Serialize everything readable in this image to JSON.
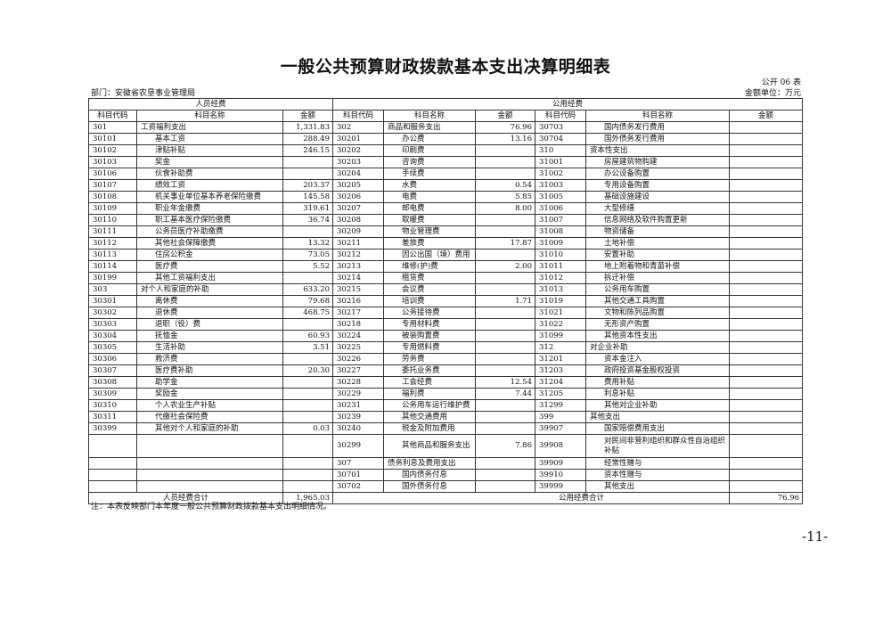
{
  "title": "一般公共预算财政拨款基本支出决算明细表",
  "table_no": "公开 06 表",
  "department": "部门：安徽省农垦事业管理局",
  "unit": "金额单位：万元",
  "sections": {
    "personnel": "人员经费",
    "public": "公用经费"
  },
  "headers": {
    "code": "科目代码",
    "name": "科目名称",
    "amount": "金额"
  },
  "personnel_rows": [
    [
      "301",
      "工资福利支出",
      "1,331.83"
    ],
    [
      "30101",
      "基本工资",
      "288.49"
    ],
    [
      "30102",
      "津贴补贴",
      "246.15"
    ],
    [
      "30103",
      "奖金",
      ""
    ],
    [
      "30106",
      "伙食补助费",
      ""
    ],
    [
      "30107",
      "绩效工资",
      "203.37"
    ],
    [
      "30108",
      "机关事业单位基本养老保险缴费",
      "145.58"
    ],
    [
      "30109",
      "职业年金缴费",
      "319.61"
    ],
    [
      "30110",
      "职工基本医疗保险缴费",
      "36.74"
    ],
    [
      "30111",
      "公务员医疗补助缴费",
      ""
    ],
    [
      "30112",
      "其他社会保障缴费",
      "13.32"
    ],
    [
      "30113",
      "住房公积金",
      "73.05"
    ],
    [
      "30114",
      "医疗费",
      "5.52"
    ],
    [
      "30199",
      "其他工资福利支出",
      ""
    ],
    [
      "303",
      "对个人和家庭的补助",
      "633.20"
    ],
    [
      "30301",
      "离休费",
      "79.68"
    ],
    [
      "30302",
      "退休费",
      "468.75"
    ],
    [
      "30303",
      "退职（役）费",
      ""
    ],
    [
      "30304",
      "抚恤金",
      "60.93"
    ],
    [
      "30305",
      "生活补助",
      "3.51"
    ],
    [
      "30306",
      "救济费",
      ""
    ],
    [
      "30307",
      "医疗费补助",
      "20.30"
    ],
    [
      "30308",
      "助学金",
      ""
    ],
    [
      "30309",
      "奖励金",
      ""
    ],
    [
      "30310",
      "个人农业生产补贴",
      ""
    ],
    [
      "30311",
      "代缴社会保险费",
      ""
    ],
    [
      "30399",
      "其他对个人和家庭的补助",
      "0.03"
    ]
  ],
  "public_rows_1": [
    [
      "302",
      "商品和服务支出",
      "76.96"
    ],
    [
      "30201",
      "办公费",
      "13.16"
    ],
    [
      "30202",
      "印刷费",
      ""
    ],
    [
      "30203",
      "咨询费",
      ""
    ],
    [
      "30204",
      "手续费",
      ""
    ],
    [
      "30205",
      "水费",
      "0.54"
    ],
    [
      "30206",
      "电费",
      "5.85"
    ],
    [
      "30207",
      "邮电费",
      "8.00"
    ],
    [
      "30208",
      "取暖费",
      ""
    ],
    [
      "30209",
      "物业管理费",
      ""
    ],
    [
      "30211",
      "差旅费",
      "17.87"
    ],
    [
      "30212",
      "因公出国（境）费用",
      ""
    ],
    [
      "30213",
      "维修(护)费",
      "2.00"
    ],
    [
      "30214",
      "租赁费",
      ""
    ],
    [
      "30215",
      "会议费",
      ""
    ],
    [
      "30216",
      "培训费",
      "1.71"
    ],
    [
      "30217",
      "公务接待费",
      ""
    ],
    [
      "30218",
      "专用材料费",
      ""
    ],
    [
      "30224",
      "被装购置费",
      ""
    ],
    [
      "30225",
      "专用燃料费",
      ""
    ],
    [
      "30226",
      "劳务费",
      ""
    ],
    [
      "30227",
      "委托业务费",
      ""
    ],
    [
      "30228",
      "工会经费",
      "12.54"
    ],
    [
      "30229",
      "福利费",
      "7.44"
    ],
    [
      "30231",
      "公务用车运行维护费",
      ""
    ],
    [
      "30239",
      "其他交通费用",
      ""
    ],
    [
      "30240",
      "税金及附加费用",
      ""
    ],
    [
      "30299",
      "其他商品和服务支出",
      "7.86"
    ],
    [
      "307",
      "债务利息及费用支出",
      ""
    ],
    [
      "30701",
      "国内债务付息",
      ""
    ],
    [
      "30702",
      "国外债务付息",
      ""
    ]
  ],
  "public_rows_2": [
    [
      "30703",
      "国内债务发行费用",
      ""
    ],
    [
      "30704",
      "国外债务发行费用",
      ""
    ],
    [
      "310",
      "资本性支出",
      ""
    ],
    [
      "31001",
      "房屋建筑物购建",
      ""
    ],
    [
      "31002",
      "办公设备购置",
      ""
    ],
    [
      "31003",
      "专用设备购置",
      ""
    ],
    [
      "31005",
      "基础设施建设",
      ""
    ],
    [
      "31006",
      "大型修缮",
      ""
    ],
    [
      "31007",
      "信息网络及软件购置更新",
      ""
    ],
    [
      "31008",
      "物资储备",
      ""
    ],
    [
      "31009",
      "土地补偿",
      ""
    ],
    [
      "31010",
      "安置补助",
      ""
    ],
    [
      "31011",
      "地上附着物和青苗补偿",
      ""
    ],
    [
      "31012",
      "拆迁补偿",
      ""
    ],
    [
      "31013",
      "公务用车购置",
      ""
    ],
    [
      "31019",
      "其他交通工具购置",
      ""
    ],
    [
      "31021",
      "文物和陈列品购置",
      ""
    ],
    [
      "31022",
      "无形资产购置",
      ""
    ],
    [
      "31099",
      "其他资本性支出",
      ""
    ],
    [
      "312",
      "对企业补助",
      ""
    ],
    [
      "31201",
      "资本金注入",
      ""
    ],
    [
      "31203",
      "政府投资基金股权投资",
      ""
    ],
    [
      "31204",
      "费用补贴",
      ""
    ],
    [
      "31205",
      "利息补贴",
      ""
    ],
    [
      "31299",
      "其他对企业补助",
      ""
    ],
    [
      "399",
      "其他支出",
      ""
    ],
    [
      "39907",
      "国家赔偿费用支出",
      ""
    ],
    [
      "39908",
      "对民间非营利组织和群众性自治组织补贴",
      ""
    ],
    [
      "39909",
      "经常性赠与",
      ""
    ],
    [
      "39910",
      "资本性赠与",
      ""
    ],
    [
      "39999",
      "其他支出",
      ""
    ]
  ],
  "totals": {
    "personnel_label": "人员经费合计",
    "personnel_amount": "1,965.03",
    "public_label": "公用经费合计",
    "public_amount": "76.96"
  },
  "note": "注：本表反映部门本年度一般公共预算财政拨款基本支出明细情况。",
  "page_number": "-11-"
}
